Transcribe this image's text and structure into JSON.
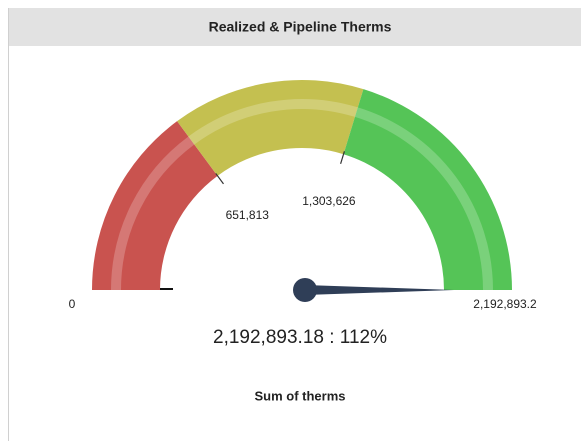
{
  "chart_data": {
    "type": "gauge",
    "title": "Realized & Pipeline Therms",
    "subtitle": "Sum of therms",
    "min": 0,
    "max": 2192893.2,
    "value": 2192893.18,
    "value_label": "2,192,893.18 : 112%",
    "ticks": [
      0,
      {
        "value": 651813,
        "label": "651,813"
      },
      {
        "value": 1303626,
        "label": "1,303,626"
      },
      {
        "value": 2192893.2,
        "label": "2,192,893.2"
      }
    ],
    "bands": [
      {
        "from": 0,
        "to": 651813,
        "color": "#c9534f"
      },
      {
        "from": 651813,
        "to": 1303626,
        "color": "#c4c050"
      },
      {
        "from": 1303626,
        "to": 2192893.2,
        "color": "#55c457"
      }
    ],
    "needle_color": "#2f3e57"
  }
}
